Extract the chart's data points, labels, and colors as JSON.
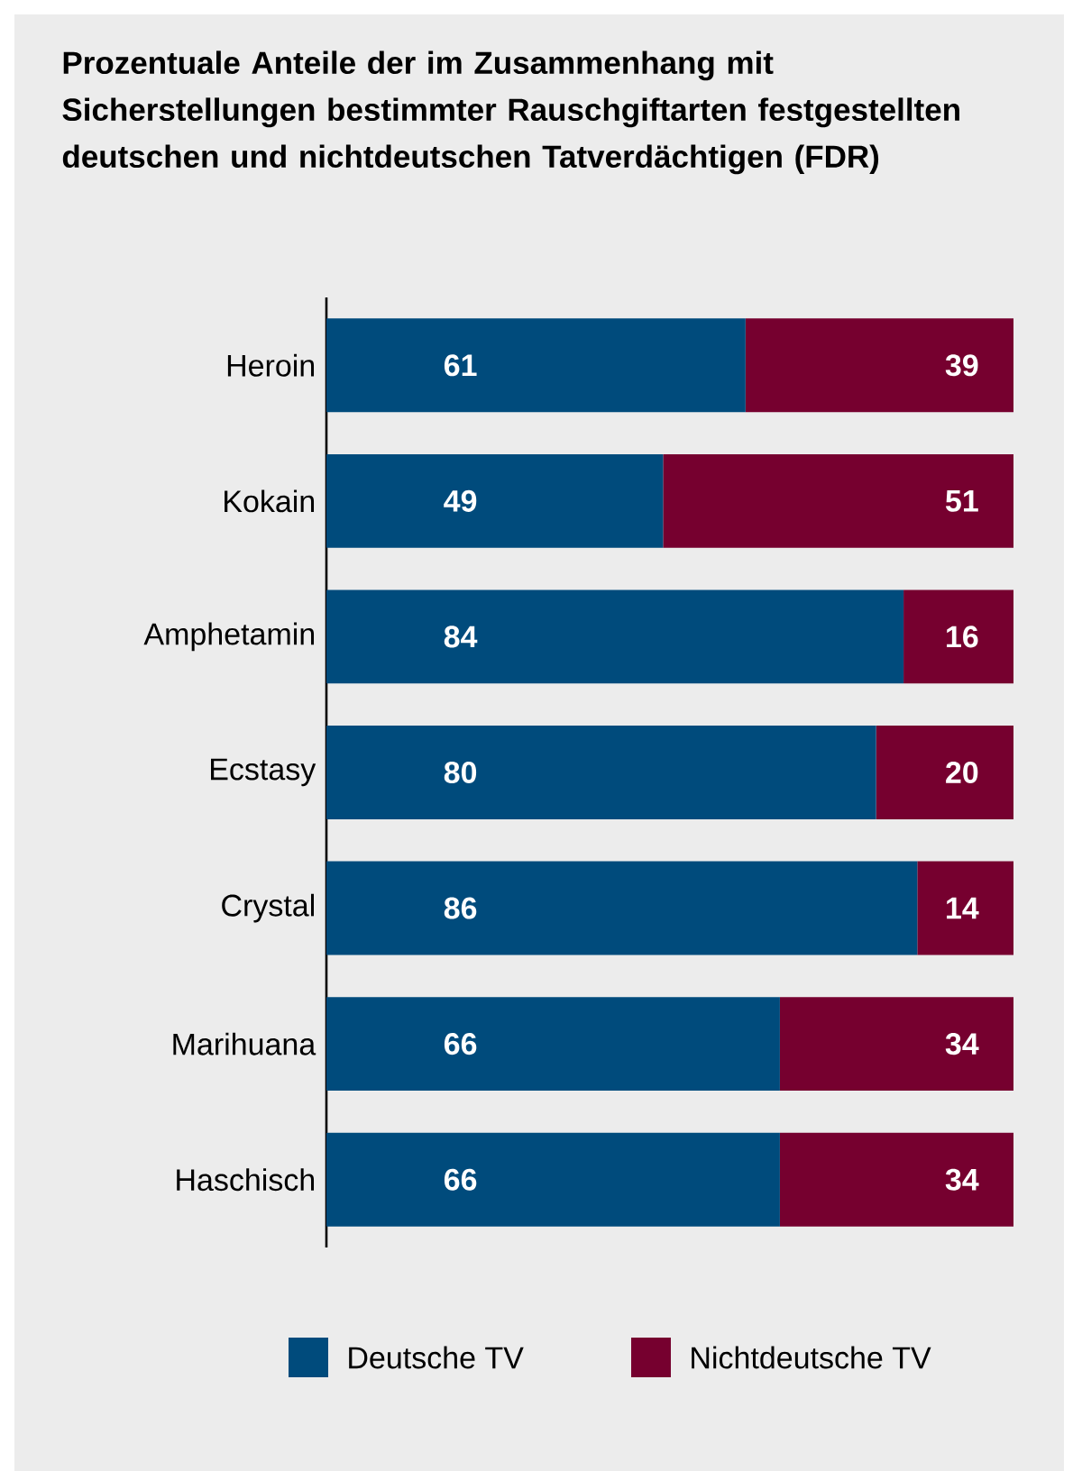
{
  "chart_data": {
    "type": "bar",
    "orientation": "horizontal",
    "stacked": true,
    "title": "Prozentuale Anteile der im Zusammenhang mit Sicherstellungen bestimmter Rauschgiftarten festgestellten deutschen und nichtdeutschen Tatverdächtigen (FDR)",
    "categories": [
      "Heroin",
      "Kokain",
      "Amphetamin",
      "Ecstasy",
      "Crystal",
      "Marihuana",
      "Haschisch"
    ],
    "series": [
      {
        "name": "Deutsche TV",
        "color": "#004b7c",
        "values": [
          61,
          49,
          84,
          80,
          86,
          66,
          66
        ]
      },
      {
        "name": "Nichtdeutsche TV",
        "color": "#76002f",
        "values": [
          39,
          51,
          16,
          20,
          14,
          34,
          34
        ]
      }
    ],
    "data_labels": true,
    "legend": "bottom",
    "tick_labels": "y",
    "grid": false
  }
}
